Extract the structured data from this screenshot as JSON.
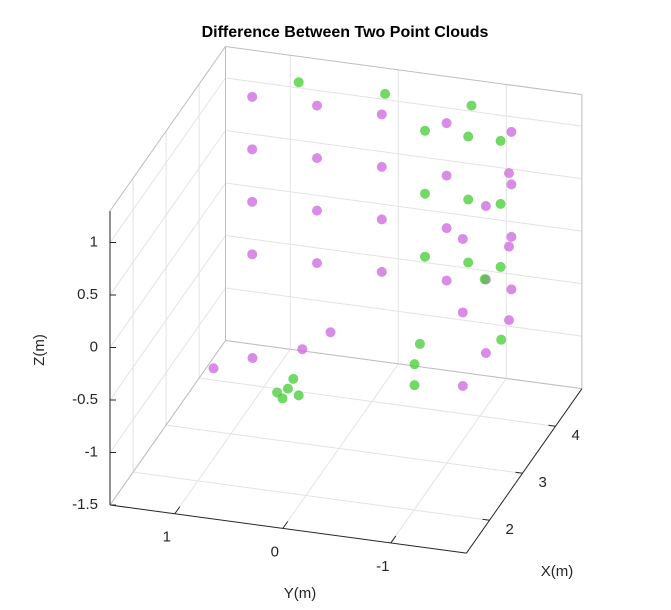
{
  "chart_data": {
    "type": "scatter3d",
    "title": "Difference Between Two Point Clouds",
    "xlabel": "X(m)",
    "ylabel": "Y(m)",
    "zlabel": "Z(m)",
    "xlim": [
      1.3,
      4.8
    ],
    "ylim": [
      -1.7,
      1.6
    ],
    "zlim": [
      -1.5,
      1.3
    ],
    "xticks": [
      2,
      3,
      4
    ],
    "yticks": [
      1,
      0,
      -1
    ],
    "zticks": [
      -1.5,
      -1,
      -0.5,
      0,
      0.5,
      1
    ],
    "grid": true,
    "series": [
      {
        "color": "#cc66dd",
        "x": [
          4.3,
          4.3,
          4.3,
          4.3,
          4.3,
          4.3,
          4.3,
          4.3,
          4.3,
          4.3,
          4.3,
          4.3,
          4.3,
          4.3,
          4.3,
          4.3,
          4.3,
          4.3,
          4.3,
          4.3,
          2.5,
          3.2,
          3.9,
          2.5,
          3.2,
          3.9,
          2.5,
          3.2,
          3.9,
          2.8,
          3.0,
          3.2,
          3.4
        ],
        "y": [
          1.2,
          0.6,
          0,
          -0.6,
          -1.2,
          1.2,
          0.6,
          0,
          -0.6,
          -1.2,
          1.2,
          0.6,
          0,
          -0.6,
          -1.2,
          1.2,
          0.6,
          0,
          -0.6,
          -1.2,
          -1.3,
          -1.3,
          -1.3,
          -1.3,
          -1.3,
          -1.3,
          -1.3,
          -1.3,
          -1.3,
          1.1,
          0.8,
          0.4,
          0.2
        ],
        "z": [
          1.1,
          1.1,
          1.1,
          1.1,
          1.1,
          0.6,
          0.6,
          0.6,
          0.6,
          0.6,
          0.1,
          0.1,
          0.1,
          0.1,
          0.1,
          -0.4,
          -0.4,
          -0.4,
          -0.4,
          -0.4,
          0.9,
          0.9,
          0.9,
          0.2,
          0.2,
          0.2,
          -0.5,
          -0.5,
          -0.5,
          -0.8,
          -0.75,
          -0.7,
          -0.6
        ]
      },
      {
        "color": "#44cc33",
        "x": [
          4.3,
          4.3,
          4.3,
          4.3,
          4.3,
          4.3,
          4.3,
          4.3,
          4.3,
          4.4,
          4.4,
          4.4,
          2.6,
          2.6,
          2.6,
          2.6,
          2.6,
          3.0,
          3.0,
          3.0,
          3.5,
          3.0
        ],
        "y": [
          -0.4,
          -0.8,
          -1.1,
          -0.4,
          -0.8,
          -1.1,
          -0.4,
          -0.8,
          -1.1,
          0.8,
          0,
          -0.8,
          0.4,
          0.35,
          0.3,
          0.45,
          0.25,
          -0.7,
          -0.7,
          -0.75,
          -1.35,
          -1.35
        ],
        "z": [
          1.0,
          1.0,
          1.0,
          0.4,
          0.4,
          0.4,
          -0.2,
          -0.2,
          -0.2,
          1.25,
          1.25,
          1.25,
          -0.9,
          -0.8,
          -0.7,
          -0.85,
          -0.85,
          -0.8,
          -0.6,
          -0.4,
          -0.5,
          0.3
        ]
      }
    ]
  }
}
